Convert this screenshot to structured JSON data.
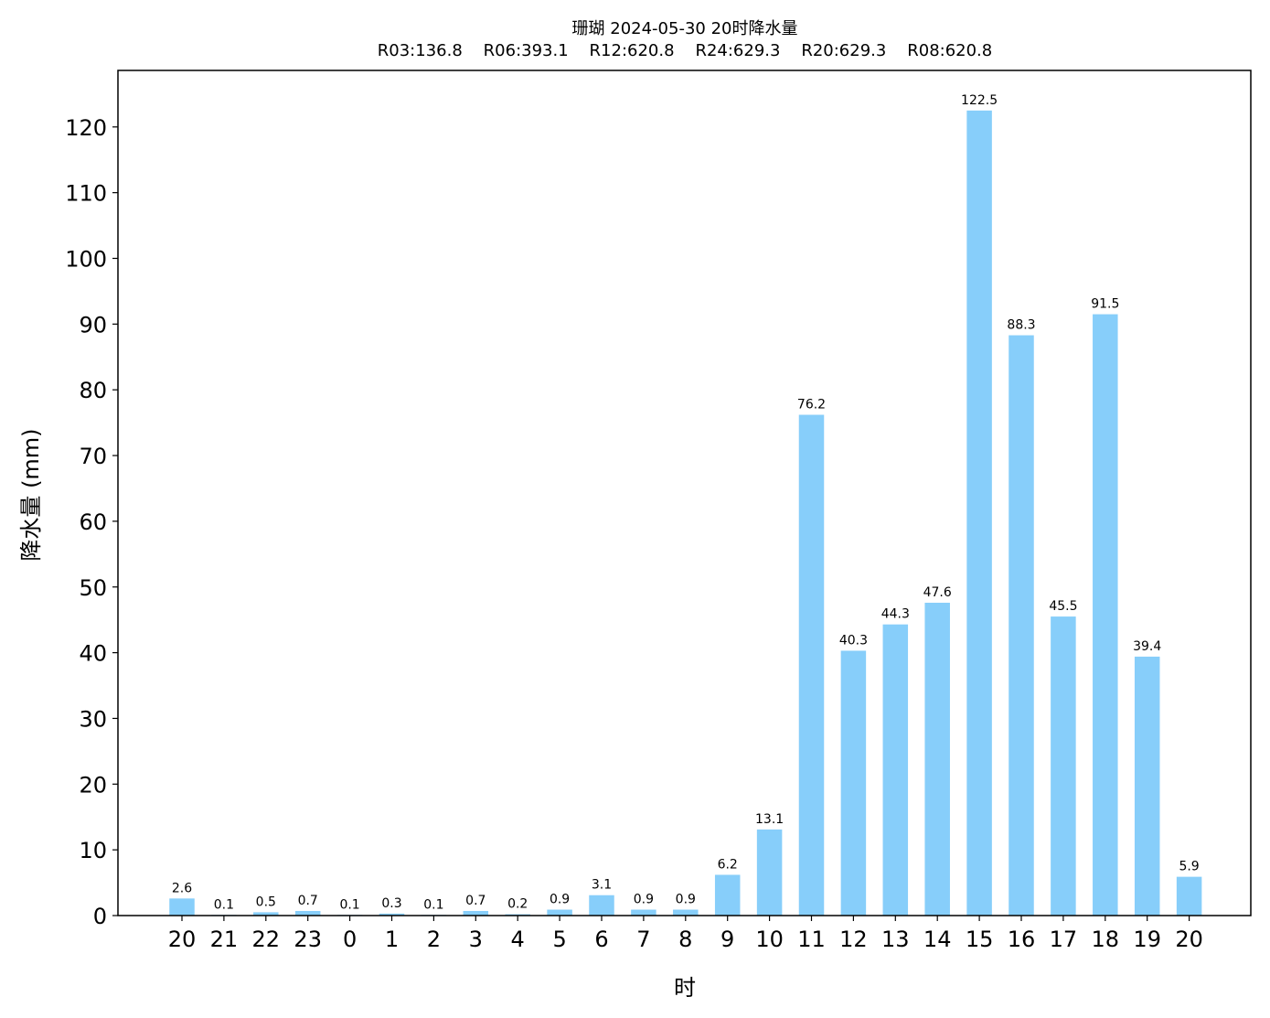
{
  "chart_data": {
    "type": "bar",
    "title": "珊瑚 2024-05-30 20时降水量",
    "subtitle": "R03:136.8    R06:393.1    R12:620.8    R24:629.3    R20:629.3    R08:620.8",
    "xlabel": "时",
    "ylabel": "降水量 (mm)",
    "ylim": [
      0,
      128.6
    ],
    "yticks": [
      0,
      10,
      20,
      30,
      40,
      50,
      60,
      70,
      80,
      90,
      100,
      110,
      120
    ],
    "categories": [
      "20",
      "21",
      "22",
      "23",
      "0",
      "1",
      "2",
      "3",
      "4",
      "5",
      "6",
      "7",
      "8",
      "9",
      "10",
      "11",
      "12",
      "13",
      "14",
      "15",
      "16",
      "17",
      "18",
      "19",
      "20"
    ],
    "values": [
      2.6,
      0.1,
      0.5,
      0.7,
      0.1,
      0.3,
      0.1,
      0.7,
      0.2,
      0.9,
      3.1,
      0.9,
      0.9,
      6.2,
      13.1,
      76.2,
      40.3,
      44.3,
      47.6,
      122.5,
      88.3,
      45.5,
      91.5,
      39.4,
      5.9
    ],
    "bar_color": "#87CEFA",
    "grid": false,
    "legend": false
  }
}
